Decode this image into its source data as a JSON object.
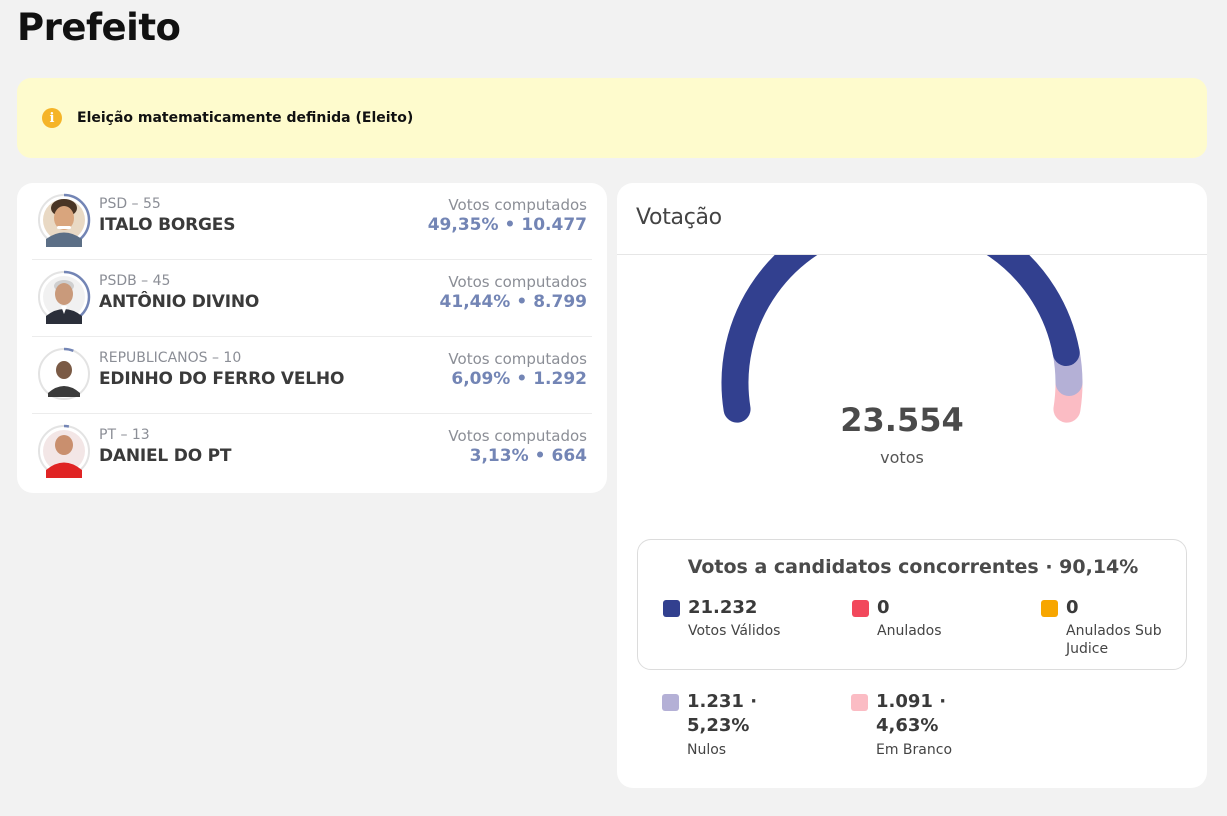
{
  "page": {
    "title": "Prefeito"
  },
  "alert": {
    "text": "Eleição matematicamente definida (Eleito)",
    "icon": "info-icon",
    "color": "#f5b428"
  },
  "candidates": [
    {
      "party": "PSD – 55",
      "name": "ITALO BORGES",
      "votes_label": "Votos computados",
      "percent": "49,35%",
      "votes": "10.477",
      "ring_fraction": 0.4935
    },
    {
      "party": "PSDB – 45",
      "name": "ANTÔNIO DIVINO",
      "votes_label": "Votos computados",
      "percent": "41,44%",
      "votes": "8.799",
      "ring_fraction": 0.4144
    },
    {
      "party": "REPUBLICANOS – 10",
      "name": "EDINHO DO FERRO VELHO",
      "votes_label": "Votos computados",
      "percent": "6,09%",
      "votes": "1.292",
      "ring_fraction": 0.0609
    },
    {
      "party": "PT – 13",
      "name": "DANIEL DO PT",
      "votes_label": "Votos computados",
      "percent": "3,13%",
      "votes": "664",
      "ring_fraction": 0.0313
    }
  ],
  "voting": {
    "title": "Votação",
    "total": "23.554",
    "unit": "votos",
    "gauge_segments": [
      {
        "name": "Votos Válidos",
        "value": 21232,
        "color": "#32408f"
      },
      {
        "name": "Anulados",
        "value": 0,
        "color": "#f2485c"
      },
      {
        "name": "Anulados Sub Judice",
        "value": 0,
        "color": "#f7a600"
      },
      {
        "name": "Nulos",
        "value": 1231,
        "color": "#b4b0d6"
      },
      {
        "name": "Em Branco",
        "value": 1091,
        "color": "#fbbcc4"
      }
    ],
    "competing": {
      "title": "Votos a candidatos concorrentes · 90,14%",
      "stats": [
        {
          "value": "21.232",
          "label": "Votos Válidos",
          "color": "#32408f"
        },
        {
          "value": "0",
          "label": "Anulados",
          "color": "#f2485c"
        },
        {
          "value": "0",
          "label": "Anulados Sub Judice",
          "color": "#f7a600"
        }
      ]
    },
    "others": [
      {
        "value": "1.231 · 5,23%",
        "value_line1": "1.231 ·",
        "value_line2": "5,23%",
        "label": "Nulos",
        "color": "#b4b0d6"
      },
      {
        "value": "1.091 · 4,63%",
        "value_line1": "1.091 ·",
        "value_line2": "4,63%",
        "label": "Em Branco",
        "color": "#fbbcc4"
      }
    ]
  }
}
